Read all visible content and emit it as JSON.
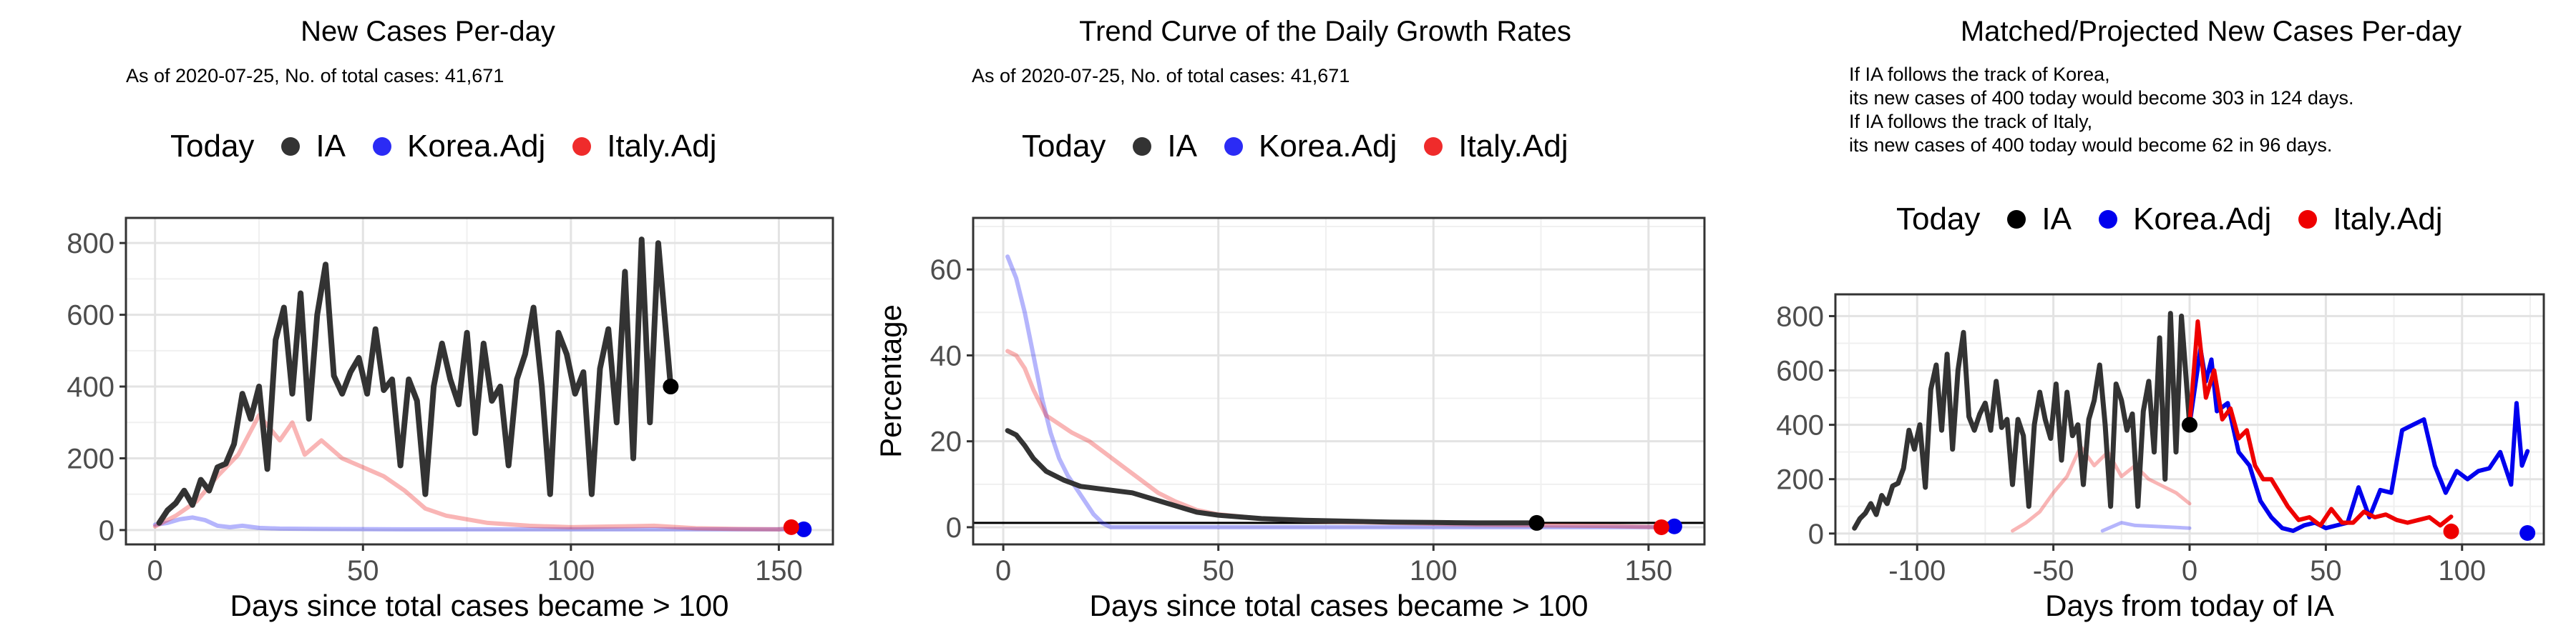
{
  "chart_data": [
    {
      "type": "line",
      "title": "New Cases Per-day",
      "subtitle": "As of 2020-07-25, No. of total cases: 41,671",
      "xlabel": "Days since total cases became > 100",
      "ylabel": "",
      "xlim": [
        -7,
        163
      ],
      "ylim": [
        -40,
        870
      ],
      "xticks": [
        0,
        50,
        100,
        150
      ],
      "yticks": [
        0,
        200,
        400,
        600,
        800
      ],
      "grid": true,
      "legend": {
        "position": "top",
        "title": "Today",
        "entries": [
          "IA",
          "Korea.Adj",
          "Italy.Adj"
        ]
      },
      "colors": {
        "IA": "#333333",
        "Korea.Adj": "#2b2bf5",
        "Italy.Adj": "#ef2b2b"
      },
      "series": [
        {
          "name": "IA",
          "x": [
            1,
            3,
            5,
            7,
            9,
            11,
            13,
            15,
            17,
            19,
            21,
            23,
            25,
            27,
            29,
            31,
            33,
            35,
            37,
            39,
            41,
            43,
            45,
            47,
            49,
            51,
            53,
            55,
            57,
            59,
            61,
            63,
            65,
            67,
            69,
            71,
            73,
            75,
            77,
            79,
            81,
            83,
            85,
            87,
            89,
            91,
            93,
            95,
            97,
            99,
            101,
            103,
            105,
            107,
            109,
            111,
            113,
            115,
            117,
            119,
            121,
            124
          ],
          "y": [
            20,
            55,
            75,
            110,
            70,
            140,
            110,
            175,
            185,
            240,
            380,
            310,
            400,
            170,
            530,
            620,
            380,
            660,
            310,
            600,
            740,
            430,
            380,
            440,
            480,
            380,
            560,
            390,
            420,
            180,
            420,
            360,
            100,
            400,
            520,
            420,
            350,
            550,
            270,
            520,
            360,
            400,
            180,
            420,
            490,
            620,
            400,
            100,
            550,
            490,
            380,
            440,
            100,
            450,
            560,
            300,
            720,
            200,
            810,
            300,
            800,
            400
          ]
        },
        {
          "name": "Korea.Adj",
          "x": [
            0,
            3,
            6,
            9,
            12,
            15,
            18,
            21,
            25,
            30,
            40,
            60,
            80,
            100,
            120,
            140,
            156
          ],
          "y": [
            15,
            20,
            30,
            35,
            28,
            12,
            8,
            12,
            6,
            4,
            3,
            2,
            2,
            2,
            2,
            2,
            2
          ]
        },
        {
          "name": "Italy.Adj",
          "x": [
            0,
            5,
            10,
            15,
            20,
            25,
            30,
            33,
            36,
            40,
            45,
            50,
            55,
            60,
            65,
            70,
            80,
            90,
            100,
            110,
            120,
            130,
            140,
            150,
            153
          ],
          "y": [
            10,
            40,
            80,
            150,
            210,
            320,
            250,
            300,
            210,
            250,
            200,
            175,
            150,
            110,
            60,
            40,
            20,
            12,
            8,
            10,
            12,
            5,
            3,
            2,
            8
          ]
        }
      ],
      "today_points": [
        {
          "name": "IA",
          "x": 124,
          "y": 400
        },
        {
          "name": "Korea.Adj",
          "x": 156,
          "y": 2
        },
        {
          "name": "Italy.Adj",
          "x": 153,
          "y": 8
        }
      ]
    },
    {
      "type": "line",
      "title": "Trend Curve of the Daily Growth Rates",
      "subtitle": "As of 2020-07-25, No. of total cases: 41,671",
      "xlabel": "Days since total cases became > 100",
      "ylabel": "Percentage",
      "xlim": [
        -7,
        163
      ],
      "ylim": [
        -4,
        72
      ],
      "xticks": [
        0,
        50,
        100,
        150
      ],
      "yticks": [
        0,
        20,
        40,
        60
      ],
      "grid": true,
      "hline": 1,
      "legend": {
        "position": "top",
        "title": "Today",
        "entries": [
          "IA",
          "Korea.Adj",
          "Italy.Adj"
        ]
      },
      "colors": {
        "IA": "#333333",
        "Korea.Adj": "#2b2bf5",
        "Italy.Adj": "#ef2b2b"
      },
      "series": [
        {
          "name": "IA",
          "x": [
            1,
            3,
            5,
            7,
            10,
            14,
            18,
            22,
            26,
            30,
            35,
            40,
            45,
            50,
            60,
            70,
            80,
            90,
            100,
            110,
            124
          ],
          "y": [
            22.5,
            21.5,
            19,
            16,
            13,
            11,
            9.5,
            9,
            8.5,
            8,
            6.5,
            5,
            3.5,
            2.8,
            2,
            1.6,
            1.4,
            1.2,
            1.1,
            1.0,
            1.0
          ]
        },
        {
          "name": "Korea.Adj",
          "x": [
            1,
            3,
            5,
            7,
            9,
            11,
            13,
            15,
            17,
            19,
            21,
            23,
            25,
            30,
            40,
            60,
            80,
            100,
            120,
            140,
            156
          ],
          "y": [
            63,
            58,
            50,
            40,
            30,
            22,
            16,
            12,
            9,
            6,
            3,
            1,
            0,
            0,
            0,
            0,
            0,
            0,
            0,
            0,
            0
          ]
        },
        {
          "name": "Italy.Adj",
          "x": [
            1,
            3,
            5,
            7,
            10,
            13,
            16,
            20,
            24,
            28,
            32,
            36,
            40,
            45,
            50,
            60,
            70,
            80,
            90,
            100,
            110,
            120,
            130,
            140,
            153
          ],
          "y": [
            41,
            40,
            37,
            32,
            26,
            24,
            22,
            20,
            17,
            14,
            11,
            8,
            6,
            4,
            3,
            2,
            1.5,
            1.2,
            1,
            0.8,
            0.6,
            0.5,
            0.4,
            0.3,
            0
          ]
        }
      ],
      "today_points": [
        {
          "name": "IA",
          "x": 124,
          "y": 1.0
        },
        {
          "name": "Korea.Adj",
          "x": 156,
          "y": 0.2
        },
        {
          "name": "Italy.Adj",
          "x": 153,
          "y": 0
        }
      ]
    },
    {
      "type": "line",
      "title": "Matched/Projected New Cases Per-day",
      "subtitle_lines": [
        "If IA follows the track of Korea,",
        "its new cases of 400 today would become 303 in 124 days.",
        "If IA follows the track of Italy,",
        "its new cases of 400 today would become 62 in 96 days."
      ],
      "xlabel": "Days from today of IA",
      "ylabel": "",
      "xlim": [
        -130,
        130
      ],
      "ylim": [
        -40,
        880
      ],
      "xticks": [
        -100,
        -50,
        0,
        50,
        100
      ],
      "yticks": [
        0,
        200,
        400,
        600,
        800
      ],
      "grid": true,
      "legend": {
        "position": "top",
        "title": "Today",
        "entries": [
          "IA",
          "Korea.Adj",
          "Italy.Adj"
        ]
      },
      "colors": {
        "IA": "#111111",
        "Korea.Adj": "#0000ee",
        "Italy.Adj": "#ee0000"
      },
      "series": [
        {
          "name": "IA",
          "x": [
            -123,
            -121,
            -119,
            -117,
            -115,
            -113,
            -111,
            -109,
            -107,
            -105,
            -103,
            -101,
            -99,
            -97,
            -95,
            -93,
            -91,
            -89,
            -87,
            -85,
            -83,
            -81,
            -79,
            -77,
            -75,
            -73,
            -71,
            -69,
            -67,
            -65,
            -63,
            -61,
            -59,
            -57,
            -55,
            -53,
            -51,
            -49,
            -47,
            -45,
            -43,
            -41,
            -39,
            -37,
            -35,
            -33,
            -31,
            -29,
            -27,
            -25,
            -23,
            -21,
            -19,
            -17,
            -15,
            -13,
            -11,
            -9,
            -7,
            -5,
            -3,
            0
          ],
          "y": [
            20,
            55,
            75,
            110,
            70,
            140,
            110,
            175,
            185,
            240,
            380,
            310,
            400,
            170,
            530,
            620,
            380,
            660,
            310,
            600,
            740,
            430,
            380,
            440,
            480,
            380,
            560,
            390,
            420,
            180,
            420,
            360,
            100,
            400,
            520,
            420,
            350,
            550,
            270,
            520,
            360,
            400,
            180,
            420,
            490,
            620,
            400,
            100,
            550,
            490,
            380,
            440,
            100,
            450,
            560,
            300,
            720,
            200,
            810,
            300,
            800,
            400
          ]
        },
        {
          "name": "Korea.Adj (matched)",
          "x": [
            -32,
            -25,
            -20,
            -10,
            0
          ],
          "y": [
            10,
            40,
            30,
            25,
            20
          ]
        },
        {
          "name": "Korea.Adj (projected)",
          "x": [
            0,
            4,
            6,
            8,
            10,
            14,
            18,
            22,
            26,
            30,
            34,
            38,
            42,
            46,
            50,
            54,
            58,
            62,
            66,
            70,
            74,
            78,
            82,
            86,
            90,
            94,
            98,
            102,
            106,
            110,
            114,
            118,
            120,
            122,
            124
          ],
          "y": [
            400,
            680,
            560,
            640,
            450,
            480,
            300,
            250,
            120,
            60,
            20,
            10,
            30,
            40,
            20,
            30,
            40,
            170,
            60,
            160,
            150,
            380,
            400,
            420,
            250,
            150,
            230,
            200,
            230,
            240,
            300,
            180,
            480,
            250,
            303
          ]
        },
        {
          "name": "Italy.Adj (matched)",
          "x": [
            -65,
            -60,
            -55,
            -50,
            -45,
            -40,
            -35,
            -30,
            -25,
            -20,
            -15,
            -10,
            -5,
            0
          ],
          "y": [
            10,
            40,
            80,
            150,
            210,
            320,
            250,
            300,
            210,
            250,
            200,
            175,
            150,
            110
          ]
        },
        {
          "name": "Italy.Adj (projected)",
          "x": [
            0,
            3,
            6,
            9,
            12,
            15,
            18,
            21,
            24,
            27,
            30,
            33,
            36,
            40,
            44,
            48,
            52,
            56,
            60,
            64,
            68,
            72,
            76,
            80,
            84,
            88,
            92,
            96
          ],
          "y": [
            400,
            780,
            500,
            600,
            420,
            460,
            350,
            380,
            250,
            200,
            200,
            150,
            100,
            50,
            60,
            30,
            90,
            40,
            40,
            80,
            60,
            70,
            50,
            40,
            50,
            60,
            30,
            62
          ]
        }
      ],
      "today_points": [
        {
          "name": "IA",
          "x": 0,
          "y": 400
        },
        {
          "name": "Korea.Adj",
          "x": 124,
          "y": 2
        },
        {
          "name": "Italy.Adj",
          "x": 96,
          "y": 8
        }
      ]
    }
  ]
}
